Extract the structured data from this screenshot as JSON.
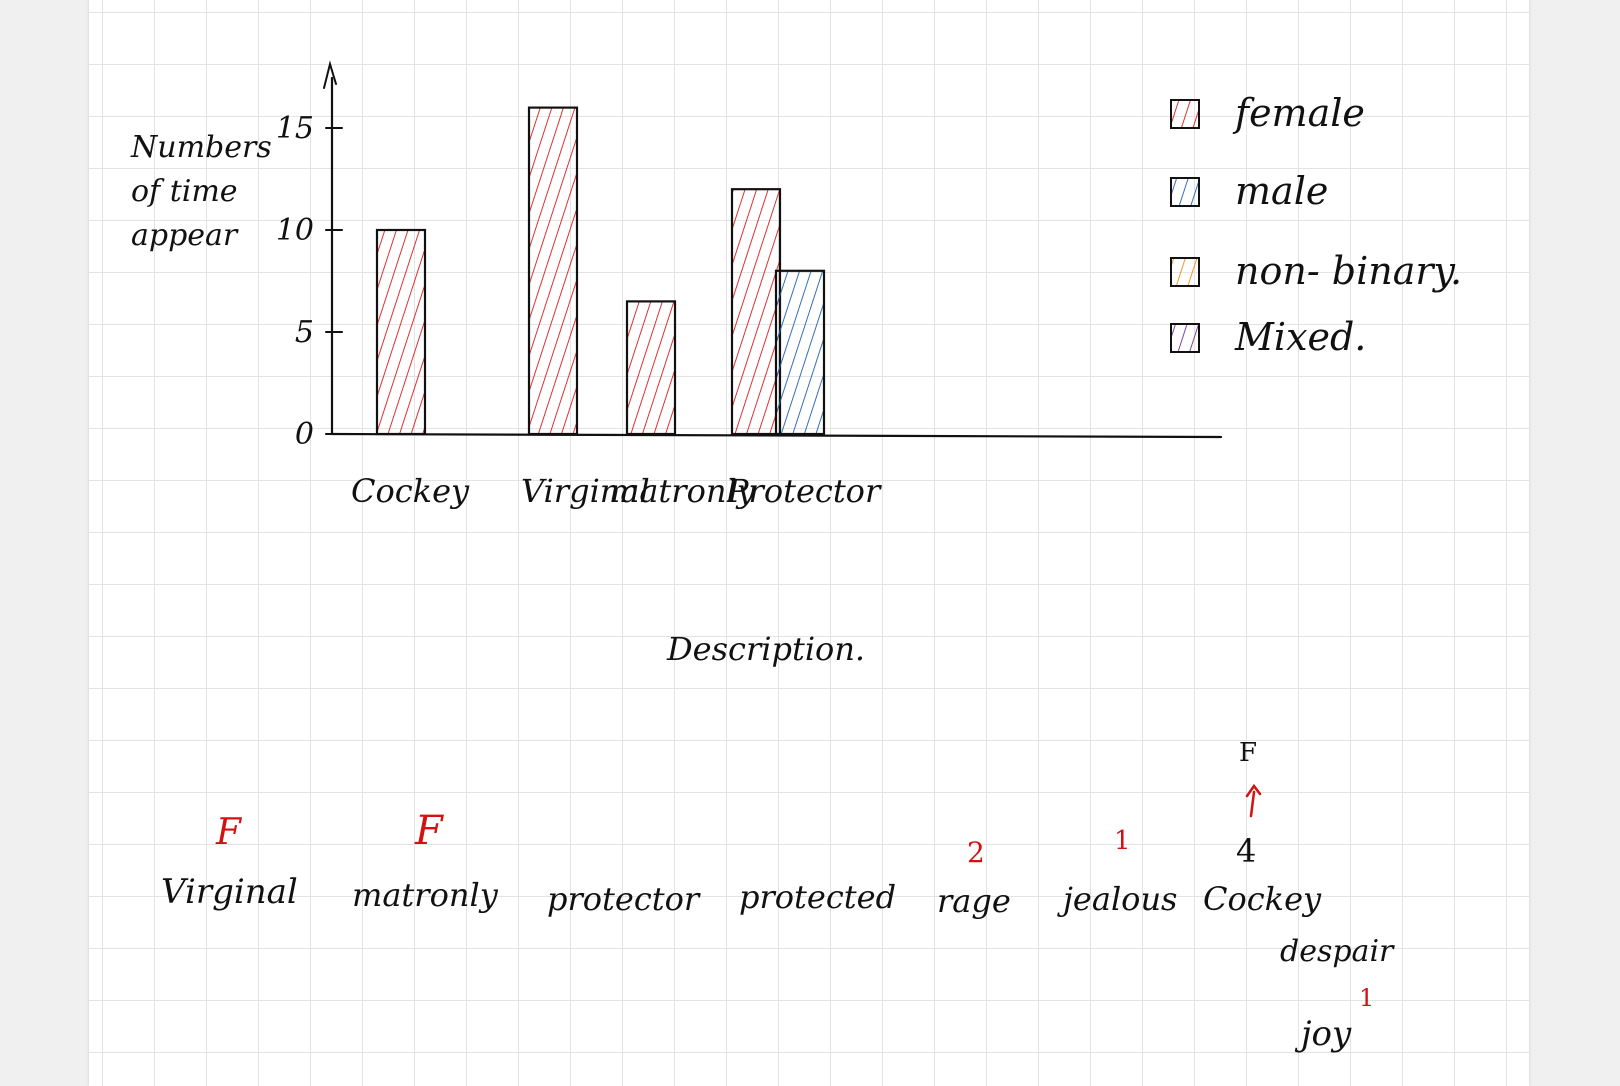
{
  "colors": {
    "female": "#d81a1a",
    "male": "#1f5fb0",
    "non_binary": "#f08a12",
    "mixed": "#7a2a9c",
    "ink": "#111111",
    "note_red": "#d11212"
  },
  "chart_data": {
    "type": "bar",
    "title": "",
    "xlabel": "Description.",
    "ylabel": "Numbers of time appear",
    "ylim": [
      0,
      15
    ],
    "yticks": [
      "0",
      "5",
      "10",
      "15"
    ],
    "categories": [
      "Cockey",
      "Virginal",
      "matronly",
      "Protector"
    ],
    "series": [
      {
        "name": "female",
        "color": "#d81a1a",
        "values": [
          10,
          16,
          6.5,
          12
        ]
      },
      {
        "name": "male",
        "color": "#1f5fb0",
        "values": [
          null,
          null,
          null,
          8
        ]
      }
    ],
    "legend": {
      "placement": "top-right",
      "entries": [
        "female",
        "male",
        "non- binary.",
        "Mixed."
      ],
      "swatch_colors": [
        "#d81a1a",
        "#1f5fb0",
        "#f08a12",
        "#7a2a9c"
      ]
    },
    "grid": false
  },
  "notes": {
    "words": [
      {
        "text": "Virginal",
        "mark": "F"
      },
      {
        "text": "matronly",
        "mark": "F"
      },
      {
        "text": "protector",
        "mark": ""
      },
      {
        "text": "protected",
        "mark": ""
      },
      {
        "text": "rage",
        "mark": "2"
      },
      {
        "text": "jealous",
        "mark": "1"
      },
      {
        "text": "Cockey",
        "mark": "4"
      },
      {
        "text": "despair",
        "mark": ""
      },
      {
        "text": "joy",
        "mark": "1"
      }
    ],
    "cockey_extra": "F"
  }
}
